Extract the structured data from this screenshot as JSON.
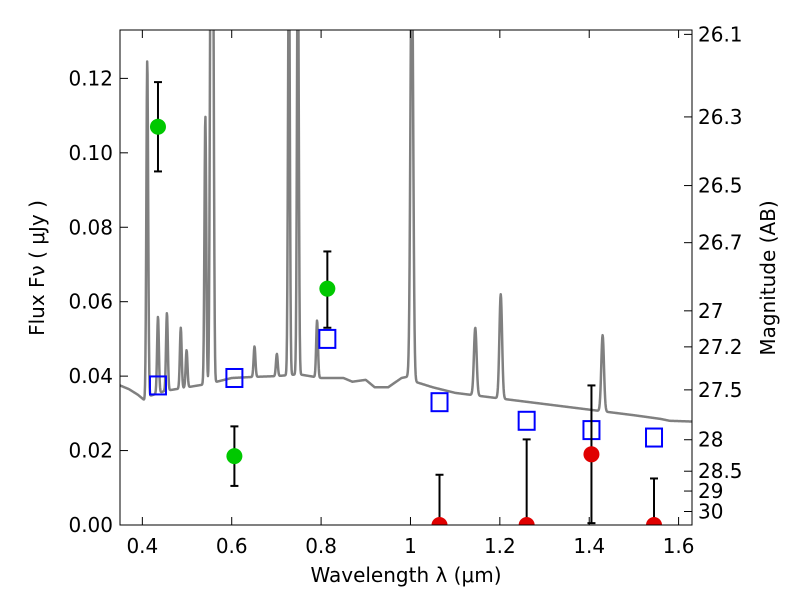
{
  "chart_data": {
    "type": "scatter",
    "xlabel": "Wavelength  λ (μm)",
    "ylabel": "Flux  Fν  ( μJy )",
    "y2label": "Magnitude (AB)",
    "xlim": [
      0.35,
      1.63
    ],
    "ylim": [
      0.0,
      0.133
    ],
    "x_ticks": [
      0.4,
      0.6,
      0.8,
      1.0,
      1.2,
      1.4,
      1.6
    ],
    "x_tick_labels": [
      "0.4",
      "0.6",
      "0.8",
      "1",
      "1.2",
      "1.4",
      "1.6"
    ],
    "y_ticks": [
      0.0,
      0.02,
      0.04,
      0.06,
      0.08,
      0.1,
      0.12
    ],
    "y_tick_labels": [
      "0.00",
      "0.02",
      "0.04",
      "0.06",
      "0.08",
      "0.10",
      "0.12"
    ],
    "y2_ticks": [
      26.1,
      26.3,
      26.5,
      26.7,
      27,
      27.2,
      27.5,
      28,
      28.5,
      29,
      30
    ],
    "y2_tick_labels": [
      "26.1",
      "26.3",
      "26.5",
      "26.7",
      "27",
      "27.2",
      "27.5",
      "28",
      "28.5",
      "29",
      "30"
    ],
    "colors": {
      "model": "#808080",
      "detection": "#00c800",
      "upper_limit": "#e00000",
      "model_photometry": "#0000ff",
      "errorbar": "#000000"
    },
    "model_spectrum": {
      "continuum": [
        [
          0.35,
          0.0375
        ],
        [
          0.37,
          0.0365
        ],
        [
          0.39,
          0.035
        ],
        [
          0.405,
          0.0335
        ],
        [
          0.412,
          0.0345
        ],
        [
          0.45,
          0.036
        ],
        [
          0.5,
          0.037
        ],
        [
          0.55,
          0.038
        ],
        [
          0.6,
          0.0395
        ],
        [
          0.65,
          0.0398
        ],
        [
          0.7,
          0.04
        ],
        [
          0.75,
          0.0405
        ],
        [
          0.8,
          0.0395
        ],
        [
          0.85,
          0.0395
        ],
        [
          0.87,
          0.0385
        ],
        [
          0.9,
          0.039
        ],
        [
          0.92,
          0.037
        ],
        [
          0.95,
          0.037
        ],
        [
          0.98,
          0.0395
        ],
        [
          1.0,
          0.04
        ],
        [
          1.01,
          0.0385
        ],
        [
          1.05,
          0.037
        ],
        [
          1.1,
          0.0355
        ],
        [
          1.2,
          0.034
        ],
        [
          1.3,
          0.0325
        ],
        [
          1.4,
          0.031
        ],
        [
          1.5,
          0.0295
        ],
        [
          1.56,
          0.0285
        ],
        [
          1.58,
          0.028
        ],
        [
          1.63,
          0.0278
        ]
      ],
      "lines": [
        {
          "x": 0.411,
          "peak": 0.125,
          "w": 0.002
        },
        {
          "x": 0.435,
          "peak": 0.056,
          "w": 0.002
        },
        {
          "x": 0.455,
          "peak": 0.057,
          "w": 0.002
        },
        {
          "x": 0.486,
          "peak": 0.053,
          "w": 0.002
        },
        {
          "x": 0.499,
          "peak": 0.047,
          "w": 0.002
        },
        {
          "x": 0.541,
          "peak": 0.11,
          "w": 0.002
        },
        {
          "x": 0.553,
          "peak": 0.16,
          "w": 0.002
        },
        {
          "x": 0.558,
          "peak": 0.16,
          "w": 0.002
        },
        {
          "x": 0.651,
          "peak": 0.048,
          "w": 0.002
        },
        {
          "x": 0.701,
          "peak": 0.046,
          "w": 0.002
        },
        {
          "x": 0.728,
          "peak": 0.16,
          "w": 0.002
        },
        {
          "x": 0.748,
          "peak": 0.16,
          "w": 0.002
        },
        {
          "x": 0.791,
          "peak": 0.055,
          "w": 0.002
        },
        {
          "x": 1.003,
          "peak": 0.16,
          "w": 0.003
        },
        {
          "x": 1.145,
          "peak": 0.053,
          "w": 0.003
        },
        {
          "x": 1.202,
          "peak": 0.062,
          "w": 0.003
        },
        {
          "x": 1.43,
          "peak": 0.051,
          "w": 0.003
        }
      ]
    },
    "detections": [
      {
        "x": 0.435,
        "y": 0.107,
        "err_low": 0.095,
        "err_high": 0.119
      },
      {
        "x": 0.606,
        "y": 0.0185,
        "err_low": 0.0105,
        "err_high": 0.0265
      },
      {
        "x": 0.814,
        "y": 0.0635,
        "err_low": 0.053,
        "err_high": 0.0735
      }
    ],
    "upper_limits": [
      {
        "x": 1.065,
        "y": 0.0,
        "err_high": 0.0135
      },
      {
        "x": 1.26,
        "y": 0.0,
        "err_high": 0.023
      },
      {
        "x": 1.405,
        "y": 0.019,
        "err_low": 0.0005,
        "err_high": 0.0375
      },
      {
        "x": 1.545,
        "y": 0.0,
        "err_high": 0.0125
      }
    ],
    "model_photometry": [
      {
        "x": 0.435,
        "y": 0.0375
      },
      {
        "x": 0.606,
        "y": 0.0395
      },
      {
        "x": 0.814,
        "y": 0.05
      },
      {
        "x": 1.065,
        "y": 0.033
      },
      {
        "x": 1.26,
        "y": 0.028
      },
      {
        "x": 1.405,
        "y": 0.0255
      },
      {
        "x": 1.545,
        "y": 0.0235
      }
    ]
  }
}
